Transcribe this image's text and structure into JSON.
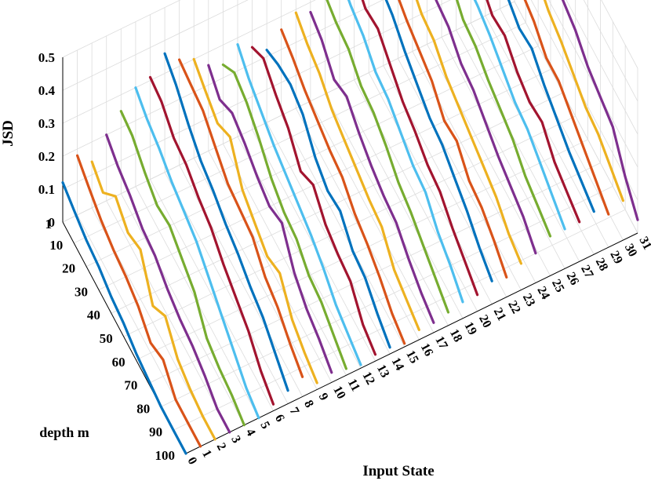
{
  "chart_data": {
    "type": "line",
    "title": "",
    "xlabel": "Input State",
    "ylabel": "depth m",
    "zlabel": "JSD",
    "x_ticks": [
      "0",
      "1",
      "2",
      "3",
      "4",
      "5",
      "6",
      "7",
      "8",
      "9",
      "10",
      "11",
      "12",
      "13",
      "14",
      "15",
      "16",
      "17",
      "18",
      "19",
      "20",
      "21",
      "22",
      "23",
      "24",
      "25",
      "26",
      "27",
      "28",
      "29",
      "30",
      "31"
    ],
    "y_ticks": [
      "1",
      "10",
      "20",
      "30",
      "40",
      "50",
      "60",
      "70",
      "80",
      "90",
      "100"
    ],
    "z_ticks": [
      "0",
      "0.1",
      "0.2",
      "0.3",
      "0.4",
      "0.5"
    ],
    "zlim": [
      0,
      0.5
    ],
    "grid": true,
    "color_cycle": [
      "#0072BD",
      "#D95319",
      "#EDB120",
      "#7E2F8E",
      "#77AC30",
      "#4DBEEE",
      "#A2142F"
    ],
    "depths": [
      1,
      10,
      20,
      30,
      40,
      50,
      60,
      70,
      80,
      90,
      100
    ],
    "series": [
      {
        "input_state": 0,
        "values": [
          0.12,
          0.1,
          0.08,
          0.07,
          0.05,
          0.04,
          0.02,
          0.01,
          0.0,
          0.0,
          0.0
        ]
      },
      {
        "input_state": 1,
        "values": [
          0.18,
          0.15,
          0.12,
          0.1,
          0.09,
          0.07,
          0.03,
          0.05,
          0.0,
          0.0,
          0.0
        ]
      },
      {
        "input_state": 2,
        "values": [
          0.14,
          0.11,
          0.17,
          0.13,
          0.15,
          0.05,
          0.09,
          0.03,
          0.01,
          0.0,
          0.0
        ]
      },
      {
        "input_state": 3,
        "values": [
          0.2,
          0.17,
          0.15,
          0.12,
          0.11,
          0.08,
          0.06,
          0.05,
          0.03,
          0.0,
          0.0
        ]
      },
      {
        "input_state": 4,
        "values": [
          0.25,
          0.24,
          0.2,
          0.17,
          0.18,
          0.15,
          0.12,
          0.05,
          0.03,
          0.02,
          0.0
        ]
      },
      {
        "input_state": 5,
        "values": [
          0.3,
          0.27,
          0.25,
          0.22,
          0.2,
          0.18,
          0.14,
          0.1,
          0.06,
          0.02,
          0.0
        ]
      },
      {
        "input_state": 6,
        "values": [
          0.31,
          0.3,
          0.26,
          0.25,
          0.22,
          0.2,
          0.16,
          0.13,
          0.1,
          0.05,
          0.02
        ]
      },
      {
        "input_state": 7,
        "values": [
          0.36,
          0.33,
          0.28,
          0.24,
          0.22,
          0.19,
          0.17,
          0.14,
          0.12,
          0.08,
          0.04
        ]
      },
      {
        "input_state": 8,
        "values": [
          0.32,
          0.31,
          0.3,
          0.26,
          0.22,
          0.21,
          0.2,
          0.15,
          0.13,
          0.09,
          0.06
        ]
      },
      {
        "input_state": 9,
        "values": [
          0.3,
          0.27,
          0.24,
          0.27,
          0.18,
          0.15,
          0.12,
          0.14,
          0.07,
          0.04,
          0.02
        ]
      },
      {
        "input_state": 10,
        "values": [
          0.26,
          0.22,
          0.25,
          0.23,
          0.2,
          0.18,
          0.2,
          0.12,
          0.08,
          0.06,
          0.03
        ]
      },
      {
        "input_state": 11,
        "values": [
          0.24,
          0.28,
          0.26,
          0.22,
          0.17,
          0.14,
          0.13,
          0.09,
          0.08,
          0.05,
          0.02
        ]
      },
      {
        "input_state": 12,
        "values": [
          0.28,
          0.24,
          0.21,
          0.18,
          0.16,
          0.14,
          0.12,
          0.09,
          0.05,
          0.03,
          0.01
        ]
      },
      {
        "input_state": 13,
        "values": [
          0.25,
          0.28,
          0.24,
          0.21,
          0.15,
          0.18,
          0.13,
          0.11,
          0.1,
          0.04,
          0.02
        ]
      },
      {
        "input_state": 14,
        "values": [
          0.22,
          0.24,
          0.25,
          0.23,
          0.17,
          0.14,
          0.15,
          0.1,
          0.09,
          0.05,
          0.02
        ]
      },
      {
        "input_state": 15,
        "values": [
          0.26,
          0.24,
          0.21,
          0.19,
          0.17,
          0.16,
          0.12,
          0.1,
          0.07,
          0.03,
          0.01
        ]
      },
      {
        "input_state": 16,
        "values": [
          0.29,
          0.26,
          0.24,
          0.2,
          0.18,
          0.16,
          0.14,
          0.13,
          0.07,
          0.05,
          0.03
        ]
      },
      {
        "input_state": 17,
        "values": [
          0.27,
          0.25,
          0.2,
          0.22,
          0.18,
          0.15,
          0.13,
          0.12,
          0.08,
          0.05,
          0.03
        ]
      },
      {
        "input_state": 18,
        "values": [
          0.3,
          0.28,
          0.27,
          0.23,
          0.22,
          0.19,
          0.15,
          0.13,
          0.1,
          0.07,
          0.04
        ]
      },
      {
        "input_state": 19,
        "values": [
          0.34,
          0.31,
          0.29,
          0.25,
          0.24,
          0.21,
          0.18,
          0.17,
          0.12,
          0.09,
          0.05
        ]
      },
      {
        "input_state": 20,
        "values": [
          0.32,
          0.28,
          0.29,
          0.25,
          0.21,
          0.19,
          0.16,
          0.15,
          0.11,
          0.08,
          0.05
        ]
      },
      {
        "input_state": 21,
        "values": [
          0.35,
          0.33,
          0.31,
          0.27,
          0.24,
          0.21,
          0.2,
          0.17,
          0.14,
          0.1,
          0.07
        ]
      },
      {
        "input_state": 22,
        "values": [
          0.32,
          0.3,
          0.27,
          0.25,
          0.23,
          0.18,
          0.19,
          0.14,
          0.13,
          0.1,
          0.06
        ]
      },
      {
        "input_state": 23,
        "values": [
          0.3,
          0.31,
          0.27,
          0.26,
          0.22,
          0.2,
          0.18,
          0.16,
          0.14,
          0.1,
          0.08
        ]
      },
      {
        "input_state": 24,
        "values": [
          0.36,
          0.34,
          0.29,
          0.28,
          0.24,
          0.23,
          0.2,
          0.17,
          0.15,
          0.13,
          0.09
        ]
      },
      {
        "input_state": 25,
        "values": [
          0.32,
          0.35,
          0.33,
          0.28,
          0.27,
          0.24,
          0.22,
          0.2,
          0.16,
          0.14,
          0.12
        ]
      },
      {
        "input_state": 26,
        "values": [
          0.38,
          0.35,
          0.31,
          0.3,
          0.28,
          0.25,
          0.22,
          0.21,
          0.18,
          0.15,
          0.12
        ]
      },
      {
        "input_state": 27,
        "values": [
          0.34,
          0.33,
          0.29,
          0.25,
          0.26,
          0.22,
          0.2,
          0.21,
          0.16,
          0.14,
          0.12
        ]
      },
      {
        "input_state": 28,
        "values": [
          0.38,
          0.35,
          0.31,
          0.29,
          0.26,
          0.27,
          0.23,
          0.2,
          0.17,
          0.15,
          0.13
        ]
      },
      {
        "input_state": 29,
        "values": [
          0.33,
          0.36,
          0.3,
          0.28,
          0.26,
          0.22,
          0.22,
          0.19,
          0.16,
          0.13,
          0.1
        ]
      },
      {
        "input_state": 30,
        "values": [
          0.36,
          0.33,
          0.3,
          0.31,
          0.27,
          0.25,
          0.22,
          0.19,
          0.18,
          0.15,
          0.12
        ]
      },
      {
        "input_state": 31,
        "values": [
          0.4,
          0.38,
          0.34,
          0.3,
          0.28,
          0.26,
          0.22,
          0.2,
          0.18,
          0.1,
          0.04
        ]
      }
    ]
  }
}
